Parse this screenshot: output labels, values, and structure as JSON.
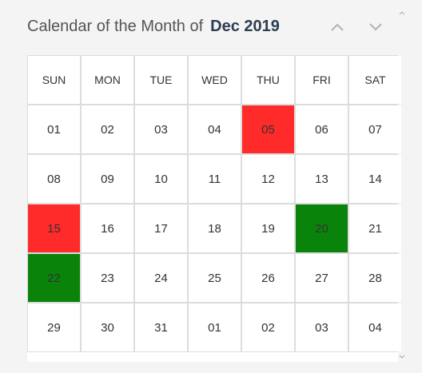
{
  "header": {
    "title_prefix": "Calendar of the Month of",
    "month_label": "Dec 2019"
  },
  "weekdays": [
    "SUN",
    "MON",
    "TUE",
    "WED",
    "THU",
    "FRI",
    "SAT"
  ],
  "weeks": [
    [
      {
        "d": "01",
        "s": ""
      },
      {
        "d": "02",
        "s": ""
      },
      {
        "d": "03",
        "s": ""
      },
      {
        "d": "04",
        "s": ""
      },
      {
        "d": "05",
        "s": "red"
      },
      {
        "d": "06",
        "s": ""
      },
      {
        "d": "07",
        "s": ""
      }
    ],
    [
      {
        "d": "08",
        "s": ""
      },
      {
        "d": "09",
        "s": ""
      },
      {
        "d": "10",
        "s": ""
      },
      {
        "d": "11",
        "s": ""
      },
      {
        "d": "12",
        "s": ""
      },
      {
        "d": "13",
        "s": ""
      },
      {
        "d": "14",
        "s": ""
      }
    ],
    [
      {
        "d": "15",
        "s": "red"
      },
      {
        "d": "16",
        "s": ""
      },
      {
        "d": "17",
        "s": ""
      },
      {
        "d": "18",
        "s": ""
      },
      {
        "d": "19",
        "s": ""
      },
      {
        "d": "20",
        "s": "green"
      },
      {
        "d": "21",
        "s": ""
      }
    ],
    [
      {
        "d": "22",
        "s": "green"
      },
      {
        "d": "23",
        "s": ""
      },
      {
        "d": "24",
        "s": ""
      },
      {
        "d": "25",
        "s": ""
      },
      {
        "d": "26",
        "s": ""
      },
      {
        "d": "27",
        "s": ""
      },
      {
        "d": "28",
        "s": ""
      }
    ],
    [
      {
        "d": "29",
        "s": ""
      },
      {
        "d": "30",
        "s": ""
      },
      {
        "d": "31",
        "s": ""
      },
      {
        "d": "01",
        "s": ""
      },
      {
        "d": "02",
        "s": ""
      },
      {
        "d": "03",
        "s": ""
      },
      {
        "d": "04",
        "s": ""
      }
    ]
  ],
  "colors": {
    "highlight_red": "#ff2a2a",
    "highlight_green": "#0a830a",
    "chevron": "#b5b5b5"
  },
  "icons": {
    "prev": "chevron-up-icon",
    "next": "chevron-down-icon"
  }
}
